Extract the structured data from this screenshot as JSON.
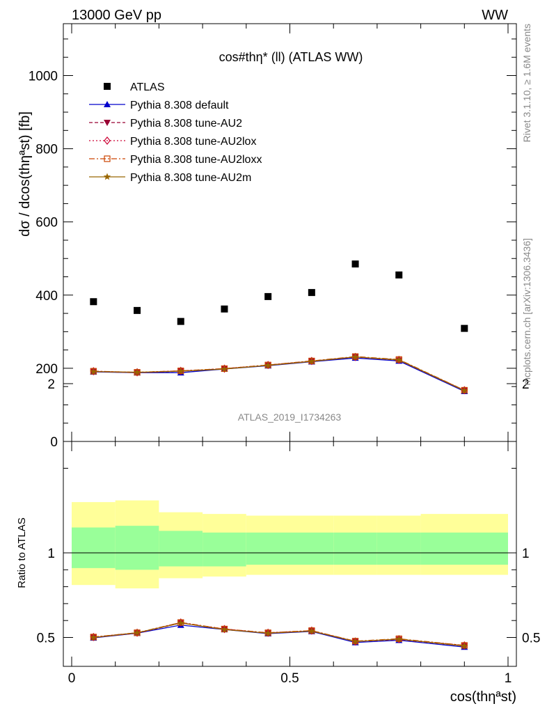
{
  "header": {
    "left": "13000 GeV pp",
    "right": "WW"
  },
  "side_labels": {
    "rivet": "Rivet 3.1.10, ≥ 1.6M events",
    "mcplots": "mcplots.cern.ch [arXiv:1306.3436]"
  },
  "watermark": "ATLAS_2019_I1734263",
  "chart_data": {
    "type": "scatter",
    "title": "cos#thη* (ll) (ATLAS WW)",
    "ylabel": "dσ / dcos(thηªst) [fb]",
    "xlabel": "cos(thηªst)",
    "ratio_ylabel": "Ratio to ATLAS",
    "xlim": [
      0,
      1
    ],
    "ylim": [
      0,
      1000
    ],
    "ratio_ylim": [
      0.35,
      2.3
    ],
    "x_ticks": [
      "0",
      "0.5",
      "1"
    ],
    "y_ticks": [
      "0",
      "200",
      "400",
      "600",
      "800",
      "1000"
    ],
    "ratio_ticks": [
      "0.5",
      "1",
      "2"
    ],
    "bin_edges": [
      0,
      0.1,
      0.2,
      0.3,
      0.4,
      0.5,
      0.6,
      0.7,
      0.8,
      1.0
    ],
    "x": [
      0.05,
      0.15,
      0.25,
      0.35,
      0.45,
      0.55,
      0.65,
      0.75,
      0.9
    ],
    "data": {
      "name": "ATLAS",
      "values": [
        382,
        358,
        328,
        362,
        396,
        407,
        485,
        455,
        309
      ]
    },
    "band_inner": [
      [
        0.91,
        1.15
      ],
      [
        0.9,
        1.16
      ],
      [
        0.92,
        1.13
      ],
      [
        0.92,
        1.12
      ],
      [
        0.93,
        1.12
      ],
      [
        0.93,
        1.12
      ],
      [
        0.93,
        1.12
      ],
      [
        0.93,
        1.12
      ],
      [
        0.93,
        1.12
      ]
    ],
    "band_outer": [
      [
        0.81,
        1.3
      ],
      [
        0.79,
        1.31
      ],
      [
        0.85,
        1.24
      ],
      [
        0.86,
        1.23
      ],
      [
        0.87,
        1.22
      ],
      [
        0.87,
        1.22
      ],
      [
        0.87,
        1.22
      ],
      [
        0.87,
        1.22
      ],
      [
        0.87,
        1.23
      ]
    ],
    "series": [
      {
        "name": "Pythia 8.308 default",
        "color": "#0000cc",
        "dash": "",
        "marker": "triangle-up",
        "values": [
          190,
          188,
          188,
          198,
          207,
          218,
          228,
          220,
          137
        ]
      },
      {
        "name": "Pythia 8.308 tune-AU2",
        "color": "#990033",
        "dash": "5,3",
        "marker": "triangle-down",
        "values": [
          191,
          188,
          192,
          199,
          208,
          219,
          231,
          222,
          139
        ]
      },
      {
        "name": "Pythia 8.308 tune-AU2lox",
        "color": "#cc0033",
        "dash": "2,3",
        "marker": "diamond-open",
        "values": [
          192,
          189,
          193,
          199,
          209,
          220,
          231,
          223,
          140
        ]
      },
      {
        "name": "Pythia 8.308 tune-AU2loxx",
        "color": "#cc4400",
        "dash": "8,3,2,3",
        "marker": "square-open",
        "values": [
          192,
          189,
          193,
          199,
          209,
          220,
          232,
          224,
          140
        ]
      },
      {
        "name": "Pythia 8.308 tune-AU2m",
        "color": "#996600",
        "dash": "",
        "marker": "star",
        "values": [
          191,
          189,
          192,
          198,
          208,
          219,
          231,
          223,
          139
        ]
      }
    ]
  }
}
